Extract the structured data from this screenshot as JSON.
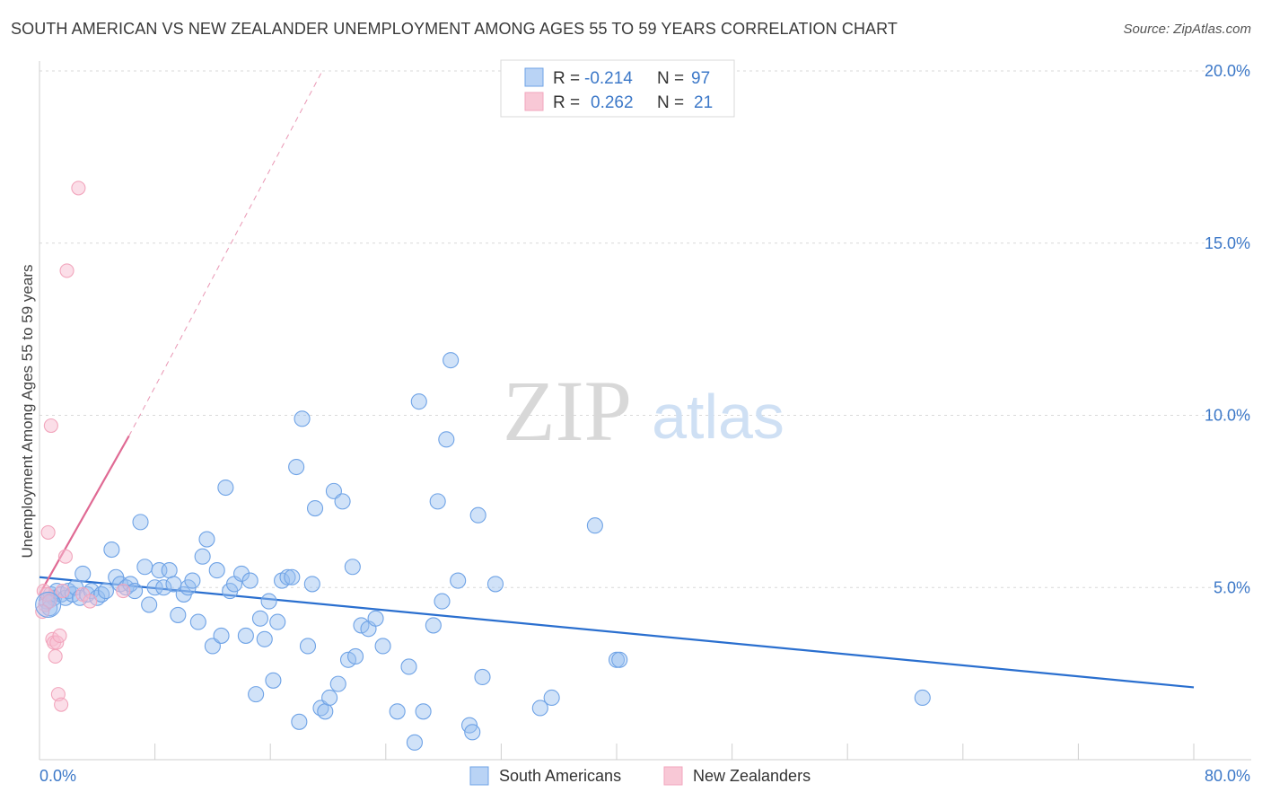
{
  "title": "SOUTH AMERICAN VS NEW ZEALANDER UNEMPLOYMENT AMONG AGES 55 TO 59 YEARS CORRELATION CHART",
  "source": "Source: ZipAtlas.com",
  "watermark": {
    "zip": "ZIP",
    "atlas": "atlas"
  },
  "colors": {
    "blue": "#6fa3e6",
    "blue_line": "#2a6fcf",
    "pink": "#f2a6bd",
    "pink_line": "#e06a94",
    "axis_label": "#3c78c8",
    "grid": "#d9d9d9"
  },
  "legend_stats": [
    {
      "r_label": "R =",
      "r_value": "-0.214",
      "n_label": "N =",
      "n_value": "97"
    },
    {
      "r_label": "R =",
      "r_value": "0.262",
      "n_label": "N =",
      "n_value": "21"
    }
  ],
  "bottom_legend": [
    "South Americans",
    "New Zealanders"
  ],
  "chart_data": {
    "type": "scatter",
    "title": "SOUTH AMERICAN VS NEW ZEALANDER UNEMPLOYMENT AMONG AGES 55 TO 59 YEARS CORRELATION CHART",
    "xlabel": "",
    "ylabel": "Unemployment Among Ages 55 to 59 years",
    "xlim": [
      0,
      80
    ],
    "ylim": [
      0,
      20
    ],
    "x_tick_labels": [
      "0.0%",
      "80.0%"
    ],
    "y_ticks": [
      5,
      10,
      15,
      20
    ],
    "y_tick_labels": [
      "5.0%",
      "10.0%",
      "15.0%",
      "20.0%"
    ],
    "grid": true,
    "legend_position": "top-center",
    "series": [
      {
        "name": "South Americans",
        "r": -0.214,
        "n": 97,
        "trend": {
          "x": [
            0,
            80
          ],
          "y": [
            5.3,
            2.1
          ]
        },
        "points": [
          [
            0.5,
            4.6
          ],
          [
            0.8,
            4.8
          ],
          [
            1.0,
            4.7
          ],
          [
            1.2,
            4.9
          ],
          [
            1.5,
            4.8
          ],
          [
            1.8,
            4.7
          ],
          [
            2.0,
            4.9
          ],
          [
            2.3,
            4.8
          ],
          [
            2.5,
            5.0
          ],
          [
            2.8,
            4.7
          ],
          [
            3.0,
            5.4
          ],
          [
            3.3,
            4.8
          ],
          [
            3.6,
            4.9
          ],
          [
            4.0,
            4.7
          ],
          [
            4.3,
            4.8
          ],
          [
            4.6,
            4.9
          ],
          [
            5.0,
            6.1
          ],
          [
            5.3,
            5.3
          ],
          [
            5.6,
            5.1
          ],
          [
            6.0,
            5.0
          ],
          [
            6.3,
            5.1
          ],
          [
            6.6,
            4.9
          ],
          [
            7.0,
            6.9
          ],
          [
            7.3,
            5.6
          ],
          [
            7.6,
            4.5
          ],
          [
            8.0,
            5.0
          ],
          [
            8.3,
            5.5
          ],
          [
            8.6,
            5.0
          ],
          [
            9.0,
            5.5
          ],
          [
            9.3,
            5.1
          ],
          [
            9.6,
            4.2
          ],
          [
            10.0,
            4.8
          ],
          [
            10.3,
            5.0
          ],
          [
            10.6,
            5.2
          ],
          [
            11.0,
            4.0
          ],
          [
            11.3,
            5.9
          ],
          [
            11.6,
            6.4
          ],
          [
            12.0,
            3.3
          ],
          [
            12.3,
            5.5
          ],
          [
            12.6,
            3.6
          ],
          [
            12.9,
            7.9
          ],
          [
            13.2,
            4.9
          ],
          [
            13.5,
            5.1
          ],
          [
            14.0,
            5.4
          ],
          [
            14.3,
            3.6
          ],
          [
            14.6,
            5.2
          ],
          [
            15.0,
            1.9
          ],
          [
            15.3,
            4.1
          ],
          [
            15.6,
            3.5
          ],
          [
            15.9,
            4.6
          ],
          [
            16.2,
            2.3
          ],
          [
            16.5,
            4.0
          ],
          [
            16.8,
            5.2
          ],
          [
            17.2,
            5.3
          ],
          [
            17.5,
            5.3
          ],
          [
            17.8,
            8.5
          ],
          [
            18.0,
            1.1
          ],
          [
            18.2,
            9.9
          ],
          [
            18.6,
            3.3
          ],
          [
            18.9,
            5.1
          ],
          [
            19.1,
            7.3
          ],
          [
            19.5,
            1.5
          ],
          [
            19.8,
            1.4
          ],
          [
            20.1,
            1.8
          ],
          [
            20.4,
            7.8
          ],
          [
            20.7,
            2.2
          ],
          [
            21.0,
            7.5
          ],
          [
            21.4,
            2.9
          ],
          [
            21.7,
            5.6
          ],
          [
            21.9,
            3.0
          ],
          [
            22.3,
            3.9
          ],
          [
            22.8,
            3.8
          ],
          [
            23.3,
            4.1
          ],
          [
            23.8,
            3.3
          ],
          [
            24.8,
            1.4
          ],
          [
            25.6,
            2.7
          ],
          [
            26.0,
            0.5
          ],
          [
            26.3,
            10.4
          ],
          [
            26.6,
            1.4
          ],
          [
            27.3,
            3.9
          ],
          [
            27.6,
            7.5
          ],
          [
            27.9,
            4.6
          ],
          [
            28.2,
            9.3
          ],
          [
            28.5,
            11.6
          ],
          [
            29.0,
            5.2
          ],
          [
            29.8,
            1.0
          ],
          [
            30.0,
            0.8
          ],
          [
            30.4,
            7.1
          ],
          [
            30.7,
            2.4
          ],
          [
            31.6,
            5.1
          ],
          [
            34.7,
            1.5
          ],
          [
            35.5,
            1.8
          ],
          [
            38.5,
            6.8
          ],
          [
            40.0,
            2.9
          ],
          [
            40.2,
            2.9
          ],
          [
            61.2,
            1.8
          ],
          [
            0.7,
            4.4
          ]
        ]
      },
      {
        "name": "New Zealanders",
        "r": 0.262,
        "n": 21,
        "trend_solid": {
          "x": [
            0,
            6.2
          ],
          "y": [
            4.8,
            9.4
          ]
        },
        "trend_dashed": {
          "x": [
            6.2,
            19.6
          ],
          "y": [
            9.4,
            20.0
          ]
        },
        "points": [
          [
            0.3,
            4.9
          ],
          [
            0.4,
            4.5
          ],
          [
            0.5,
            4.8
          ],
          [
            0.6,
            6.6
          ],
          [
            0.7,
            4.6
          ],
          [
            0.8,
            9.7
          ],
          [
            0.9,
            3.5
          ],
          [
            1.0,
            3.4
          ],
          [
            1.1,
            3.0
          ],
          [
            1.2,
            3.4
          ],
          [
            1.3,
            1.9
          ],
          [
            1.4,
            3.6
          ],
          [
            1.5,
            1.6
          ],
          [
            1.6,
            4.9
          ],
          [
            1.8,
            5.9
          ],
          [
            1.9,
            14.2
          ],
          [
            2.7,
            16.6
          ],
          [
            3.0,
            4.8
          ],
          [
            3.5,
            4.6
          ],
          [
            5.8,
            4.9
          ],
          [
            0.2,
            4.3
          ]
        ]
      }
    ]
  }
}
